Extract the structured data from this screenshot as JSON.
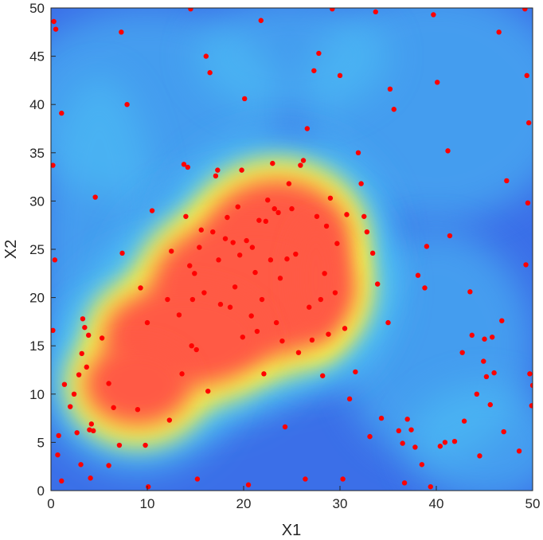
{
  "chart_data": {
    "type": "scatter",
    "title": "",
    "xlabel": "X1",
    "ylabel": "X2",
    "xlim": [
      0,
      50
    ],
    "ylim": [
      0,
      50
    ],
    "xticks": [
      "0",
      "10",
      "20",
      "30",
      "40",
      "50"
    ],
    "yticks": [
      "0",
      "5",
      "10",
      "15",
      "20",
      "25",
      "30",
      "35",
      "40",
      "45",
      "50"
    ],
    "grid": false,
    "background_heatmap": {
      "colormap": "jet",
      "description_level": "high density region spanning X1 4-30, X2 4-31",
      "colors": {
        "low": "#3b6fe8",
        "mid": "#4ec3f5",
        "high_edge": "#f5f04a",
        "peak": "#ff5a44"
      }
    },
    "marker_color": "#ff0000",
    "points": [
      [
        0.3,
        48.6
      ],
      [
        0.5,
        47.8
      ],
      [
        1.1,
        39.1
      ],
      [
        0.2,
        33.7
      ],
      [
        0.4,
        23.9
      ],
      [
        0.2,
        16.6
      ],
      [
        0.8,
        5.7
      ],
      [
        0.7,
        3.7
      ],
      [
        1.1,
        1.0
      ],
      [
        1.4,
        11.0
      ],
      [
        2.0,
        8.7
      ],
      [
        2.4,
        10.0
      ],
      [
        2.7,
        6.0
      ],
      [
        2.9,
        12.0
      ],
      [
        3.2,
        14.2
      ],
      [
        3.3,
        17.8
      ],
      [
        3.5,
        16.9
      ],
      [
        3.7,
        12.8
      ],
      [
        3.1,
        2.7
      ],
      [
        4.1,
        1.3
      ],
      [
        3.9,
        16.1
      ],
      [
        4.0,
        6.3
      ],
      [
        4.2,
        6.9
      ],
      [
        4.4,
        6.2
      ],
      [
        4.6,
        30.4
      ],
      [
        5.3,
        15.8
      ],
      [
        6.0,
        11.1
      ],
      [
        6.5,
        8.6
      ],
      [
        6.0,
        2.6
      ],
      [
        7.1,
        4.7
      ],
      [
        7.4,
        24.6
      ],
      [
        7.3,
        47.5
      ],
      [
        7.9,
        40.0
      ],
      [
        9.0,
        8.4
      ],
      [
        9.3,
        21.0
      ],
      [
        9.8,
        4.7
      ],
      [
        10.0,
        17.4
      ],
      [
        10.1,
        0.4
      ],
      [
        10.5,
        29.0
      ],
      [
        12.1,
        19.8
      ],
      [
        12.3,
        7.3
      ],
      [
        12.5,
        24.8
      ],
      [
        13.3,
        18.2
      ],
      [
        13.6,
        12.1
      ],
      [
        13.8,
        33.8
      ],
      [
        14.0,
        28.4
      ],
      [
        14.2,
        33.5
      ],
      [
        14.4,
        23.3
      ],
      [
        14.5,
        49.9
      ],
      [
        14.6,
        15.0
      ],
      [
        14.7,
        19.8
      ],
      [
        14.9,
        22.5
      ],
      [
        15.1,
        14.6
      ],
      [
        15.2,
        1.2
      ],
      [
        15.4,
        25.2
      ],
      [
        15.6,
        27.0
      ],
      [
        15.9,
        20.5
      ],
      [
        16.1,
        45.0
      ],
      [
        16.3,
        10.3
      ],
      [
        16.5,
        43.3
      ],
      [
        16.8,
        26.8
      ],
      [
        17.1,
        32.6
      ],
      [
        17.3,
        33.2
      ],
      [
        17.4,
        23.9
      ],
      [
        17.6,
        19.3
      ],
      [
        18.1,
        26.1
      ],
      [
        18.3,
        28.3
      ],
      [
        18.6,
        19.0
      ],
      [
        18.9,
        25.7
      ],
      [
        19.1,
        21.1
      ],
      [
        19.4,
        29.4
      ],
      [
        19.6,
        24.4
      ],
      [
        19.9,
        15.9
      ],
      [
        19.8,
        33.2
      ],
      [
        20.3,
        25.9
      ],
      [
        20.1,
        40.6
      ],
      [
        20.5,
        0.6
      ],
      [
        20.8,
        18.1
      ],
      [
        20.9,
        25.2
      ],
      [
        21.2,
        22.6
      ],
      [
        21.4,
        16.5
      ],
      [
        21.6,
        28.0
      ],
      [
        21.8,
        48.7
      ],
      [
        21.9,
        19.8
      ],
      [
        22.1,
        12.1
      ],
      [
        22.3,
        27.9
      ],
      [
        22.5,
        30.1
      ],
      [
        22.8,
        23.9
      ],
      [
        23.0,
        33.9
      ],
      [
        23.2,
        29.2
      ],
      [
        23.4,
        17.4
      ],
      [
        23.6,
        28.8
      ],
      [
        23.8,
        22.0
      ],
      [
        24.0,
        15.5
      ],
      [
        24.3,
        6.6
      ],
      [
        24.5,
        24.0
      ],
      [
        24.7,
        31.8
      ],
      [
        25.0,
        29.2
      ],
      [
        25.4,
        24.5
      ],
      [
        25.7,
        14.3
      ],
      [
        25.9,
        33.7
      ],
      [
        26.2,
        34.2
      ],
      [
        26.4,
        1.2
      ],
      [
        26.6,
        37.5
      ],
      [
        26.8,
        19.0
      ],
      [
        27.1,
        15.6
      ],
      [
        27.3,
        43.5
      ],
      [
        27.6,
        28.4
      ],
      [
        27.8,
        45.3
      ],
      [
        28.0,
        19.8
      ],
      [
        28.2,
        11.9
      ],
      [
        28.4,
        22.5
      ],
      [
        28.6,
        27.4
      ],
      [
        28.8,
        16.2
      ],
      [
        29.0,
        30.3
      ],
      [
        29.2,
        49.9
      ],
      [
        29.5,
        20.5
      ],
      [
        29.7,
        25.6
      ],
      [
        30.0,
        43.0
      ],
      [
        30.3,
        1.2
      ],
      [
        30.5,
        16.8
      ],
      [
        30.7,
        28.6
      ],
      [
        31.0,
        9.5
      ],
      [
        31.6,
        12.3
      ],
      [
        31.9,
        35.0
      ],
      [
        32.2,
        31.8
      ],
      [
        32.5,
        28.4
      ],
      [
        32.8,
        26.8
      ],
      [
        33.1,
        5.6
      ],
      [
        33.4,
        24.6
      ],
      [
        33.7,
        49.6
      ],
      [
        33.9,
        21.4
      ],
      [
        34.3,
        7.5
      ],
      [
        35.0,
        17.4
      ],
      [
        35.2,
        41.6
      ],
      [
        35.6,
        39.5
      ],
      [
        36.1,
        6.2
      ],
      [
        36.5,
        4.9
      ],
      [
        36.7,
        0.8
      ],
      [
        37.0,
        7.4
      ],
      [
        37.4,
        6.3
      ],
      [
        37.8,
        4.5
      ],
      [
        38.1,
        22.3
      ],
      [
        38.5,
        2.7
      ],
      [
        38.8,
        21.0
      ],
      [
        39.0,
        25.3
      ],
      [
        39.4,
        0.4
      ],
      [
        39.7,
        49.3
      ],
      [
        40.1,
        42.3
      ],
      [
        40.4,
        4.6
      ],
      [
        40.9,
        5.0
      ],
      [
        41.2,
        35.2
      ],
      [
        41.4,
        26.4
      ],
      [
        41.9,
        5.1
      ],
      [
        42.7,
        14.3
      ],
      [
        42.9,
        7.2
      ],
      [
        43.5,
        20.6
      ],
      [
        43.7,
        16.1
      ],
      [
        44.2,
        10.0
      ],
      [
        44.5,
        3.6
      ],
      [
        44.9,
        13.4
      ],
      [
        45.0,
        15.7
      ],
      [
        45.2,
        11.8
      ],
      [
        45.6,
        8.9
      ],
      [
        45.8,
        15.9
      ],
      [
        46.0,
        12.2
      ],
      [
        46.5,
        47.5
      ],
      [
        46.8,
        17.6
      ],
      [
        47.0,
        6.1
      ],
      [
        47.3,
        32.1
      ],
      [
        48.6,
        4.1
      ],
      [
        49.2,
        49.9
      ],
      [
        49.3,
        23.4
      ],
      [
        49.4,
        43.0
      ],
      [
        49.5,
        29.8
      ],
      [
        49.6,
        38.1
      ],
      [
        49.7,
        12.1
      ],
      [
        49.9,
        8.8
      ],
      [
        50.0,
        10.9
      ]
    ],
    "density_regions": [
      {
        "x": 23.5,
        "y": 26.0,
        "rx": 8,
        "ry": 7
      },
      {
        "x": 21.0,
        "y": 21.0,
        "rx": 11,
        "ry": 8
      },
      {
        "x": 14.0,
        "y": 16.0,
        "rx": 9,
        "ry": 6
      },
      {
        "x": 9.0,
        "y": 11.0,
        "rx": 6,
        "ry": 5
      },
      {
        "x": 27.5,
        "y": 22.0,
        "rx": 3,
        "ry": 7
      }
    ]
  }
}
